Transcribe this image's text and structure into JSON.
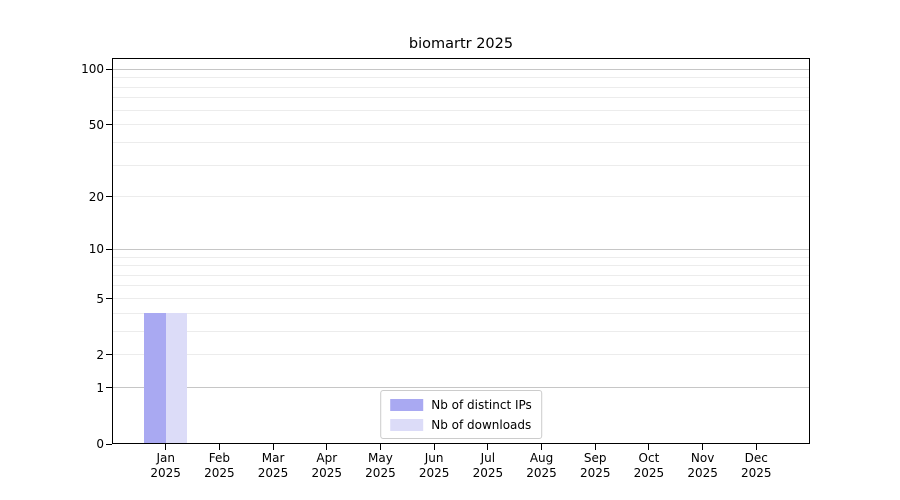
{
  "title": "biomartr 2025",
  "colors": {
    "bar_distinct_ips": "#a9a9f2",
    "bar_downloads": "#dcdcf8",
    "grid_major": "#c6c6c6",
    "grid_minor": "#ececec",
    "axis": "#000000",
    "legend_border": "#cccccc",
    "text": "#000000"
  },
  "legend": {
    "items": [
      {
        "label": "Nb of distinct IPs",
        "color": "#a9a9f2"
      },
      {
        "label": "Nb of downloads",
        "color": "#dcdcf8"
      }
    ]
  },
  "chart_data": {
    "type": "bar",
    "title": "biomartr 2025",
    "categories": [
      "Jan 2025",
      "Feb 2025",
      "Mar 2025",
      "Apr 2025",
      "May 2025",
      "Jun 2025",
      "Jul 2025",
      "Aug 2025",
      "Sep 2025",
      "Oct 2025",
      "Nov 2025",
      "Dec 2025"
    ],
    "series": [
      {
        "name": "Nb of distinct IPs",
        "color": "#a9a9f2",
        "values": [
          4,
          0,
          0,
          0,
          0,
          0,
          0,
          0,
          0,
          0,
          0,
          0
        ]
      },
      {
        "name": "Nb of downloads",
        "color": "#dcdcf8",
        "values": [
          4,
          0,
          0,
          0,
          0,
          0,
          0,
          0,
          0,
          0,
          0,
          0
        ]
      }
    ],
    "xlabel": "",
    "ylabel": "",
    "yscale": "log1p",
    "ylim": [
      0,
      115
    ],
    "yticks": [
      0,
      1,
      2,
      5,
      10,
      20,
      50,
      100
    ],
    "major_gridlines": [
      1,
      10,
      100
    ],
    "minor_gridlines": [
      2,
      3,
      4,
      5,
      6,
      7,
      8,
      9,
      20,
      30,
      40,
      50,
      60,
      70,
      80,
      90
    ],
    "grid": true,
    "legend_position": "lower center"
  }
}
